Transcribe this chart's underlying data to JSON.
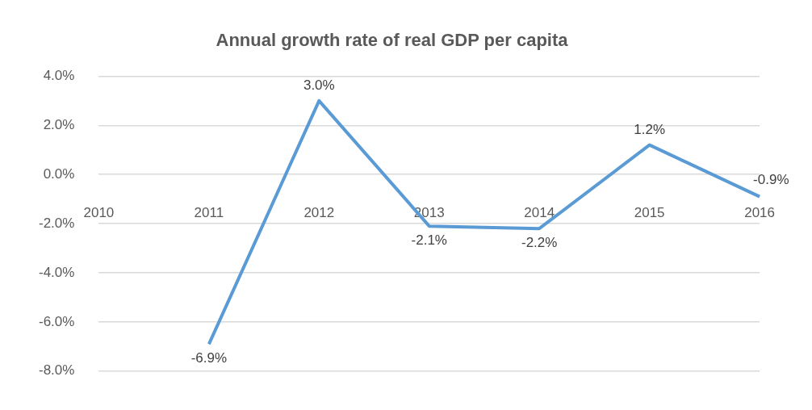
{
  "chart_data": {
    "type": "line",
    "title": "Annual growth rate of real GDP per capita",
    "categories": [
      "2010",
      "2011",
      "2012",
      "2013",
      "2014",
      "2015",
      "2016"
    ],
    "series": [
      {
        "color": "#5b9bd5",
        "values": [
          null,
          -6.9,
          3.0,
          -2.1,
          -2.2,
          1.2,
          -0.9
        ],
        "value_labels": [
          null,
          "-6.9%",
          "3.0%",
          "-2.1%",
          "-2.2%",
          "1.2%",
          "-0.9%"
        ]
      }
    ],
    "ylim": [
      -8,
      4
    ],
    "yticks": [
      {
        "value": -8,
        "label": "-8.0%"
      },
      {
        "value": -6,
        "label": "-6.0%"
      },
      {
        "value": -4,
        "label": "-4.0%"
      },
      {
        "value": -2,
        "label": "-2.0%"
      },
      {
        "value": 0,
        "label": "0.0%"
      },
      {
        "value": 2,
        "label": "2.0%"
      },
      {
        "value": 4,
        "label": "4.0%"
      }
    ],
    "grid": "y",
    "legend": false,
    "marker": "none",
    "line_style": "solid"
  }
}
